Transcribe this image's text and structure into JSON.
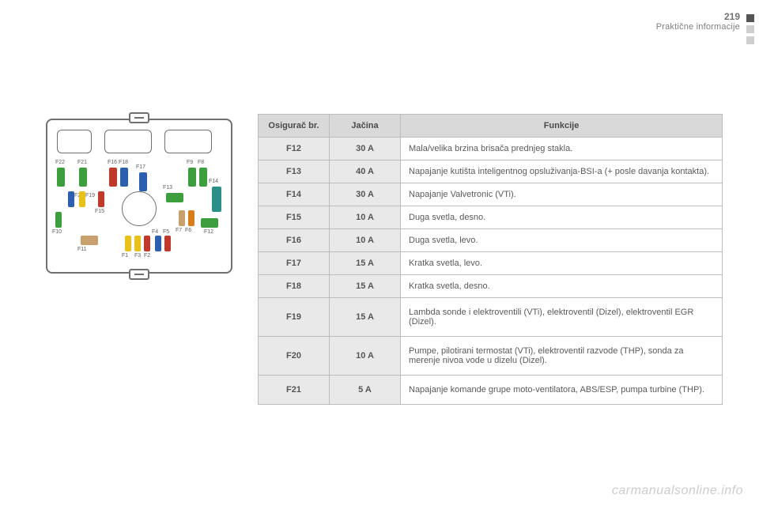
{
  "header": {
    "page_number": "219",
    "section": "Praktične informacije"
  },
  "diagram": {
    "labels": {
      "F22": "F22",
      "F21": "F21",
      "F20": "F20",
      "F19": "F19",
      "F18": "F18",
      "F17": "F17",
      "F16": "F16",
      "F15": "F15",
      "F14": "F14",
      "F13": "F13",
      "F12": "F12",
      "F11": "F11",
      "F10": "F10",
      "F9": "F9",
      "F8": "F8",
      "F7": "F7",
      "F6": "F6",
      "F5": "F5",
      "F4": "F4",
      "F3": "F3",
      "F2": "F2",
      "F1": "F1"
    },
    "colors": {
      "green": "#3c9e3c",
      "blue": "#2d5fb0",
      "yellow": "#e8c21a",
      "red": "#c0392b",
      "tan": "#c9a06b",
      "teal": "#2a8f86",
      "orange": "#d97c1a"
    }
  },
  "table": {
    "headers": {
      "fuse": "Osigurač br.",
      "amp": "Jačina",
      "func": "Funkcije"
    },
    "rows": [
      {
        "fuse": "F12",
        "amp": "30 A",
        "func": "Mala/velika brzina brisača prednjeg stakla."
      },
      {
        "fuse": "F13",
        "amp": "40 A",
        "func": "Napajanje kutišta inteligentnog opsluživanja-BSI-a (+ posle davanja kontakta)."
      },
      {
        "fuse": "F14",
        "amp": "30 A",
        "func": "Napajanje Valvetronic (VTi)."
      },
      {
        "fuse": "F15",
        "amp": "10 A",
        "func": "Duga svetla, desno."
      },
      {
        "fuse": "F16",
        "amp": "10 A",
        "func": "Duga svetla, levo."
      },
      {
        "fuse": "F17",
        "amp": "15 A",
        "func": "Kratka svetla, levo."
      },
      {
        "fuse": "F18",
        "amp": "15 A",
        "func": "Kratka svetla, desno."
      },
      {
        "fuse": "F19",
        "amp": "15 A",
        "func": "Lambda sonde i elektroventili (VTi), elektroventil (Dizel), elektroventil EGR (Dizel).",
        "tall": true
      },
      {
        "fuse": "F20",
        "amp": "10 A",
        "func": "Pumpe, pilotirani termostat (VTi), elektroventil razvode (THP), sonda za merenje nivoa vode u dizelu (Dizel).",
        "tall": true
      },
      {
        "fuse": "F21",
        "amp": "5 A",
        "func": "Napajanje komande grupe moto-ventilatora, ABS/ESP, pumpa turbine (THP).",
        "tall": true
      }
    ]
  },
  "footer": {
    "url": "carmanualsonline.info"
  }
}
